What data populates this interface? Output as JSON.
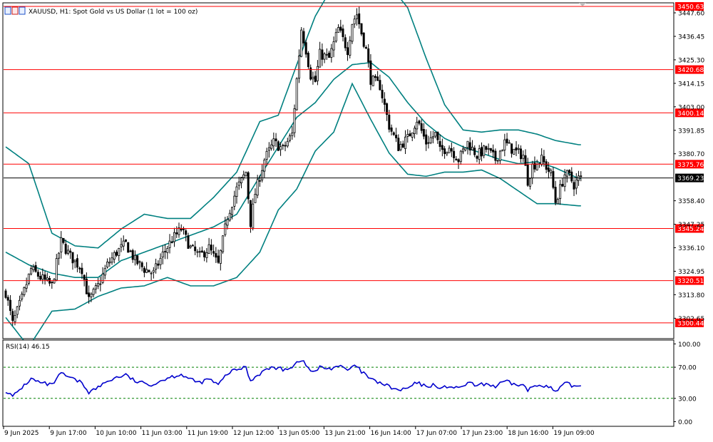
{
  "chart_data": {
    "type": "candlestick",
    "title": "XAUUSD, H1:  Spot Gold vs US Dollar (1 lot = 100 oz)",
    "price_axis": {
      "ylim": [
        3293.3,
        3452.0
      ],
      "ticks": [
        "3447.60",
        "3436.45",
        "3425.30",
        "3414.15",
        "3403.00",
        "3391.85",
        "3380.70",
        "3358.40",
        "3347.25",
        "3336.10",
        "3324.95",
        "3313.80",
        "3302.65"
      ]
    },
    "time_axis": {
      "labels": [
        "9 Jun 2025",
        "9 Jun 17:00",
        "10 Jun 10:00",
        "11 Jun 03:00",
        "11 Jun 19:00",
        "12 Jun 12:00",
        "13 Jun 05:00",
        "13 Jun 21:00",
        "16 Jun 14:00",
        "17 Jun 07:00",
        "17 Jun 23:00",
        "18 Jun 16:00",
        "19 Jun 09:00"
      ]
    },
    "levels": [
      {
        "value": 3450.63,
        "label": "3450.63"
      },
      {
        "value": 3420.68,
        "label": "3420.68"
      },
      {
        "value": 3400.14,
        "label": "3400.14"
      },
      {
        "value": 3375.76,
        "label": "3375.76"
      },
      {
        "value": 3345.24,
        "label": "3345.24"
      },
      {
        "value": 3320.51,
        "label": "3320.51"
      },
      {
        "value": 3300.44,
        "label": "3300.44"
      }
    ],
    "current_price": {
      "value": 3369.23,
      "label": "3369.23"
    },
    "close_path": [
      [
        0,
        3315
      ],
      [
        3,
        3300
      ],
      [
        7,
        3312
      ],
      [
        11,
        3326
      ],
      [
        15,
        3322
      ],
      [
        20,
        3318
      ],
      [
        24,
        3339
      ],
      [
        28,
        3332
      ],
      [
        33,
        3326
      ],
      [
        36,
        3311
      ],
      [
        40,
        3318
      ],
      [
        44,
        3328
      ],
      [
        48,
        3334
      ],
      [
        52,
        3338
      ],
      [
        56,
        3330
      ],
      [
        60,
        3326
      ],
      [
        64,
        3324
      ],
      [
        68,
        3333
      ],
      [
        72,
        3340
      ],
      [
        76,
        3345
      ],
      [
        80,
        3336
      ],
      [
        84,
        3332
      ],
      [
        88,
        3336
      ],
      [
        92,
        3328
      ],
      [
        96,
        3351
      ],
      [
        100,
        3364
      ],
      [
        104,
        3372
      ],
      [
        106,
        3348
      ],
      [
        108,
        3362
      ],
      [
        112,
        3378
      ],
      [
        116,
        3386
      ],
      [
        120,
        3383
      ],
      [
        124,
        3390
      ],
      [
        126,
        3416
      ],
      [
        128,
        3440
      ],
      [
        130,
        3430
      ],
      [
        132,
        3418
      ],
      [
        134,
        3415
      ],
      [
        136,
        3428
      ],
      [
        140,
        3426
      ],
      [
        144,
        3440
      ],
      [
        148,
        3430
      ],
      [
        150,
        3443
      ],
      [
        152,
        3447
      ],
      [
        154,
        3438
      ],
      [
        156,
        3430
      ],
      [
        158,
        3416
      ],
      [
        162,
        3413
      ],
      [
        166,
        3394
      ],
      [
        170,
        3384
      ],
      [
        174,
        3388
      ],
      [
        178,
        3397
      ],
      [
        182,
        3386
      ],
      [
        186,
        3390
      ],
      [
        188,
        3382
      ],
      [
        192,
        3384
      ],
      [
        196,
        3378
      ],
      [
        200,
        3386
      ],
      [
        204,
        3380
      ],
      [
        208,
        3383
      ],
      [
        212,
        3378
      ],
      [
        216,
        3386
      ],
      [
        220,
        3382
      ],
      [
        224,
        3380
      ],
      [
        226,
        3368
      ],
      [
        228,
        3375
      ],
      [
        232,
        3378
      ],
      [
        236,
        3371
      ],
      [
        238,
        3358
      ],
      [
        240,
        3364
      ],
      [
        242,
        3371
      ],
      [
        244,
        3370
      ],
      [
        246,
        3366
      ],
      [
        248,
        3369
      ]
    ],
    "bollinger": {
      "period": 20,
      "upper": [
        [
          0,
          3384
        ],
        [
          10,
          3376
        ],
        [
          20,
          3343
        ],
        [
          30,
          3337
        ],
        [
          40,
          3336
        ],
        [
          50,
          3345
        ],
        [
          60,
          3352
        ],
        [
          70,
          3350
        ],
        [
          80,
          3350
        ],
        [
          90,
          3360
        ],
        [
          100,
          3372
        ],
        [
          110,
          3396
        ],
        [
          118,
          3399
        ],
        [
          126,
          3423
        ],
        [
          134,
          3446
        ],
        [
          142,
          3461
        ],
        [
          150,
          3467
        ],
        [
          158,
          3456
        ],
        [
          166,
          3461
        ],
        [
          174,
          3450
        ],
        [
          182,
          3426
        ],
        [
          190,
          3404
        ],
        [
          198,
          3392
        ],
        [
          206,
          3391
        ],
        [
          214,
          3392
        ],
        [
          222,
          3392
        ],
        [
          230,
          3390
        ],
        [
          238,
          3387
        ],
        [
          248,
          3385
        ]
      ],
      "middle": [
        [
          0,
          3334
        ],
        [
          10,
          3328
        ],
        [
          20,
          3324
        ],
        [
          30,
          3322
        ],
        [
          40,
          3322
        ],
        [
          50,
          3330
        ],
        [
          60,
          3334
        ],
        [
          70,
          3338
        ],
        [
          80,
          3342
        ],
        [
          90,
          3346
        ],
        [
          100,
          3352
        ],
        [
          110,
          3370
        ],
        [
          118,
          3384
        ],
        [
          126,
          3398
        ],
        [
          134,
          3405
        ],
        [
          142,
          3416
        ],
        [
          150,
          3423
        ],
        [
          158,
          3424
        ],
        [
          166,
          3417
        ],
        [
          174,
          3405
        ],
        [
          182,
          3395
        ],
        [
          190,
          3388
        ],
        [
          198,
          3384
        ],
        [
          206,
          3381
        ],
        [
          214,
          3378
        ],
        [
          222,
          3376
        ],
        [
          230,
          3377
        ],
        [
          238,
          3374
        ],
        [
          248,
          3369
        ]
      ],
      "lower": [
        [
          0,
          3303
        ],
        [
          10,
          3289
        ],
        [
          20,
          3306
        ],
        [
          30,
          3307
        ],
        [
          40,
          3313
        ],
        [
          50,
          3317
        ],
        [
          60,
          3318
        ],
        [
          70,
          3322
        ],
        [
          80,
          3318
        ],
        [
          90,
          3318
        ],
        [
          100,
          3322
        ],
        [
          110,
          3334
        ],
        [
          118,
          3354
        ],
        [
          126,
          3364
        ],
        [
          134,
          3382
        ],
        [
          142,
          3391
        ],
        [
          150,
          3414
        ],
        [
          158,
          3397
        ],
        [
          166,
          3381
        ],
        [
          174,
          3371
        ],
        [
          182,
          3370
        ],
        [
          190,
          3372
        ],
        [
          198,
          3372
        ],
        [
          206,
          3373
        ],
        [
          214,
          3369
        ],
        [
          222,
          3363
        ],
        [
          230,
          3357
        ],
        [
          238,
          3357
        ],
        [
          248,
          3356
        ]
      ]
    },
    "rsi": {
      "label": "RSI(14) 46.15",
      "period": 14,
      "value": 46.15,
      "ylim": [
        -5,
        104
      ],
      "ticks": [
        "100.00",
        "70.00",
        "30.00",
        "0.00"
      ],
      "levels": [
        70,
        30
      ],
      "path": [
        [
          0,
          40
        ],
        [
          3,
          32
        ],
        [
          7,
          44
        ],
        [
          11,
          55
        ],
        [
          15,
          50
        ],
        [
          20,
          47
        ],
        [
          24,
          62
        ],
        [
          28,
          56
        ],
        [
          33,
          50
        ],
        [
          36,
          38
        ],
        [
          40,
          44
        ],
        [
          44,
          52
        ],
        [
          48,
          57
        ],
        [
          52,
          60
        ],
        [
          56,
          52
        ],
        [
          60,
          49
        ],
        [
          64,
          48
        ],
        [
          68,
          54
        ],
        [
          72,
          58
        ],
        [
          76,
          61
        ],
        [
          80,
          54
        ],
        [
          84,
          50
        ],
        [
          88,
          55
        ],
        [
          92,
          47
        ],
        [
          96,
          62
        ],
        [
          100,
          67
        ],
        [
          104,
          70
        ],
        [
          106,
          52
        ],
        [
          108,
          58
        ],
        [
          112,
          66
        ],
        [
          116,
          70
        ],
        [
          120,
          67
        ],
        [
          124,
          71
        ],
        [
          126,
          76
        ],
        [
          128,
          80
        ],
        [
          130,
          72
        ],
        [
          132,
          66
        ],
        [
          134,
          64
        ],
        [
          136,
          70
        ],
        [
          140,
          68
        ],
        [
          144,
          72
        ],
        [
          148,
          66
        ],
        [
          150,
          70
        ],
        [
          152,
          71
        ],
        [
          154,
          64
        ],
        [
          156,
          60
        ],
        [
          158,
          54
        ],
        [
          162,
          50
        ],
        [
          166,
          45
        ],
        [
          170,
          40
        ],
        [
          174,
          43
        ],
        [
          178,
          50
        ],
        [
          182,
          45
        ],
        [
          186,
          48
        ],
        [
          188,
          42
        ],
        [
          192,
          46
        ],
        [
          196,
          42
        ],
        [
          200,
          50
        ],
        [
          204,
          46
        ],
        [
          208,
          49
        ],
        [
          212,
          45
        ],
        [
          216,
          52
        ],
        [
          220,
          48
        ],
        [
          224,
          47
        ],
        [
          226,
          40
        ],
        [
          228,
          45
        ],
        [
          232,
          48
        ],
        [
          236,
          43
        ],
        [
          238,
          38
        ],
        [
          240,
          43
        ],
        [
          242,
          49
        ],
        [
          244,
          48
        ],
        [
          246,
          45
        ],
        [
          248,
          46.15
        ]
      ]
    },
    "colors": {
      "background": "#ffffff",
      "candle": "#000000",
      "bollinger": "#008080",
      "level": "#ff0000",
      "level_label_bg": "#ff0000",
      "current_price_line": "#000000",
      "current_price_bg": "#000000",
      "rsi_line": "#0000cd",
      "rsi_level": "#008000",
      "axis": "#000000"
    }
  }
}
